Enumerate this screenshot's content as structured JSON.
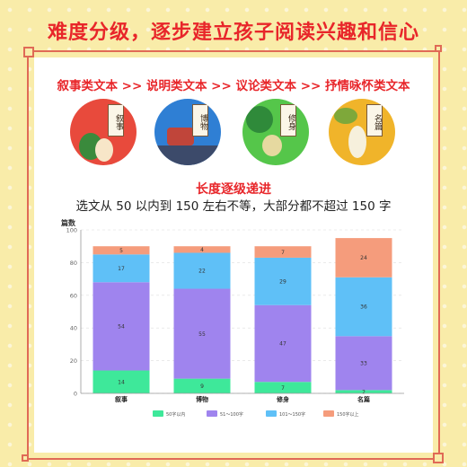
{
  "headline": "难度分级，逐步建立孩子阅读兴趣和信心",
  "categories_line": "叙事类文本 >> 说明类文本 >> 议论类文本 >> 抒情咏怀类文本",
  "circles": [
    {
      "label": "叙事",
      "bg": "#e84a3c",
      "ground": "#f3c26a"
    },
    {
      "label": "博物",
      "bg": "#2f7fd4",
      "ground": "#3c4a6a"
    },
    {
      "label": "修身",
      "bg": "#55c64a",
      "ground": "#e6d9a0"
    },
    {
      "label": "名篇",
      "bg": "#f0b42a",
      "ground": "#e9c87a"
    }
  ],
  "subtitle": "长度逐级递进",
  "caption": "选文从 50 以内到 150 左右不等，大部分都不超过 150 字",
  "chart_data": {
    "type": "bar",
    "stacked": true,
    "ylabel": "篇数",
    "ylim": [
      0,
      100
    ],
    "yticks": [
      0,
      20,
      40,
      60,
      80,
      100
    ],
    "categories": [
      "叙事",
      "博物",
      "修身",
      "名篇"
    ],
    "series": [
      {
        "name": "50字以内",
        "color": "#3ee89a",
        "values": [
          14,
          9,
          7,
          2
        ]
      },
      {
        "name": "51～100字",
        "color": "#9f84ee",
        "values": [
          54,
          55,
          47,
          33
        ]
      },
      {
        "name": "101～150字",
        "color": "#5fc0f7",
        "values": [
          17,
          22,
          29,
          36
        ]
      },
      {
        "name": "150字以上",
        "color": "#f59c7c",
        "values": [
          5,
          4,
          7,
          24
        ]
      }
    ],
    "data_labels": [
      [
        "14",
        "9",
        "7",
        "2"
      ],
      [
        "54",
        "55",
        "47",
        "33"
      ],
      [
        "17",
        "22",
        "29",
        "36"
      ],
      [
        "5",
        "4",
        "7",
        "24"
      ]
    ],
    "grid": true,
    "legend_position": "bottom"
  }
}
